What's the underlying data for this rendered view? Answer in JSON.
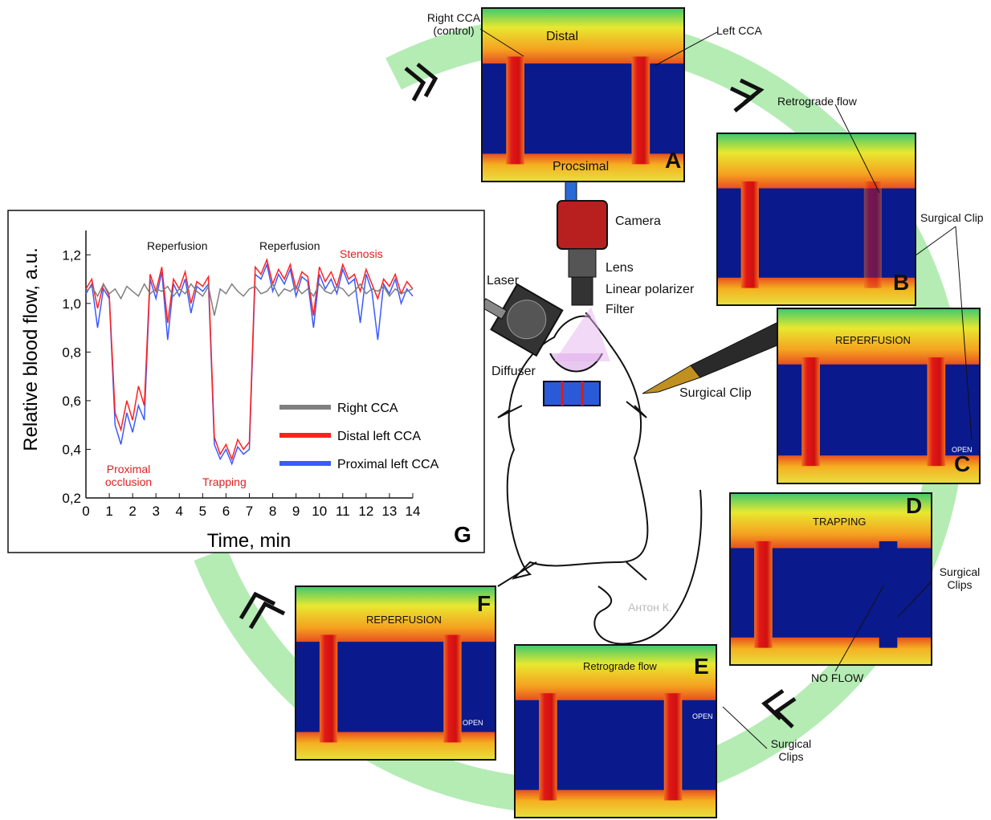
{
  "chart_data": {
    "type": "line",
    "xlabel": "Time, min",
    "ylabel": "Relative blood flow, a.u.",
    "panel_letter": "G",
    "x": [
      0,
      0.25,
      0.5,
      0.75,
      1,
      1.25,
      1.5,
      1.75,
      2,
      2.25,
      2.5,
      2.75,
      3,
      3.25,
      3.5,
      3.75,
      4,
      4.25,
      4.5,
      4.75,
      5,
      5.25,
      5.5,
      5.75,
      6,
      6.25,
      6.5,
      6.75,
      7,
      7.25,
      7.5,
      7.75,
      8,
      8.25,
      8.5,
      8.75,
      9,
      9.25,
      9.5,
      9.75,
      10,
      10.25,
      10.5,
      10.75,
      11,
      11.25,
      11.5,
      11.75,
      12,
      12.25,
      12.5,
      12.75,
      13,
      13.25,
      13.5,
      13.75,
      14
    ],
    "series": [
      {
        "name": "Right CCA",
        "color": "#7f7f7f",
        "values": [
          1.05,
          1.07,
          1.03,
          1.08,
          1.04,
          1.06,
          1.02,
          1.07,
          1.05,
          1.03,
          1.08,
          1.04,
          1.06,
          1.05,
          1.07,
          1.03,
          1.06,
          1.04,
          1.08,
          1.05,
          1.03,
          1.07,
          0.95,
          1.06,
          1.04,
          1.08,
          1.05,
          1.03,
          1.06,
          1.07,
          1.04,
          1.05,
          1.08,
          1.03,
          1.06,
          1.05,
          1.07,
          1.04,
          1.06,
          1.03,
          1.08,
          1.05,
          1.04,
          1.07,
          1.06,
          1.03,
          1.05,
          1.08,
          1.04,
          1.06,
          1.05,
          1.07,
          1.03,
          1.06,
          1.04,
          1.05,
          1.06
        ]
      },
      {
        "name": "Distal left CCA",
        "color": "#ff2020",
        "values": [
          1.06,
          1.1,
          0.98,
          1.08,
          1.03,
          0.55,
          0.48,
          0.6,
          0.52,
          0.66,
          0.58,
          1.12,
          1.05,
          1.15,
          0.92,
          1.1,
          1.06,
          1.13,
          1.0,
          1.09,
          1.07,
          1.11,
          0.45,
          0.38,
          0.42,
          0.36,
          0.44,
          0.4,
          0.43,
          1.15,
          1.12,
          1.18,
          1.08,
          1.14,
          1.1,
          1.16,
          1.06,
          1.13,
          1.11,
          0.95,
          1.15,
          1.09,
          1.13,
          1.07,
          1.16,
          1.1,
          1.12,
          1.05,
          1.14,
          1.08,
          1.02,
          1.1,
          1.07,
          1.12,
          1.04,
          1.09,
          1.06
        ]
      },
      {
        "name": "Proximal left CCA",
        "color": "#3c5aff",
        "values": [
          1.04,
          1.08,
          0.9,
          1.06,
          1.02,
          0.5,
          0.42,
          0.55,
          0.47,
          0.58,
          0.52,
          1.1,
          1.02,
          1.13,
          0.85,
          1.08,
          1.03,
          1.1,
          0.96,
          1.07,
          1.05,
          1.08,
          0.42,
          0.36,
          0.4,
          0.34,
          0.41,
          0.38,
          0.4,
          1.12,
          1.1,
          1.16,
          1.05,
          1.12,
          1.08,
          1.14,
          1.03,
          1.11,
          1.09,
          0.9,
          1.12,
          1.06,
          1.1,
          1.04,
          1.14,
          1.08,
          1.1,
          0.92,
          1.12,
          1.05,
          0.85,
          1.08,
          1.04,
          1.1,
          1.0,
          1.06,
          1.03
        ]
      }
    ],
    "xlim": [
      0,
      14
    ],
    "xticks": [
      0,
      1,
      2,
      3,
      4,
      5,
      6,
      7,
      8,
      9,
      10,
      11,
      12,
      13,
      14
    ],
    "ylim": [
      0.2,
      1.3
    ],
    "yticks": [
      {
        "value": 0.2,
        "label": "0,2"
      },
      {
        "value": 0.4,
        "label": "0,4"
      },
      {
        "value": 0.6,
        "label": "0,6"
      },
      {
        "value": 0.8,
        "label": "0,8"
      },
      {
        "value": 1.0,
        "label": "1,0"
      },
      {
        "value": 1.2,
        "label": "1,2"
      }
    ],
    "annotations": [
      {
        "text": "Reperfusion",
        "color": "#111111"
      },
      {
        "text": "Reperfusion",
        "color": "#111111"
      },
      {
        "text": "Stenosis",
        "color": "#e02020"
      },
      {
        "text": "Proximal occlusion",
        "color": "#e02020"
      },
      {
        "text": "Trapping",
        "color": "#e02020"
      }
    ]
  },
  "panels": [
    {
      "letter": "A",
      "labels": [
        "Distal",
        "Procsimal"
      ]
    },
    {
      "letter": "B",
      "labels": []
    },
    {
      "letter": "C",
      "labels": [
        "REPERFUSION",
        "OPEN"
      ]
    },
    {
      "letter": "D",
      "labels": [
        "TRAPPING"
      ]
    },
    {
      "letter": "E",
      "labels": [
        "Retrograde flow",
        "OPEN"
      ]
    },
    {
      "letter": "F",
      "labels": [
        "REPERFUSION",
        "OPEN"
      ]
    }
  ],
  "callouts": [
    "Right CCA (control)",
    "Left CCA",
    "Retrograde flow",
    "Surgical Clip",
    "Surgical Clip",
    "Surgical Clips",
    "NO FLOW",
    "Surgical Clips"
  ],
  "setup": [
    "Camera",
    "Lens",
    "Linear polarizer",
    "Filter",
    "Laser",
    "Diffuser",
    "Антон К."
  ]
}
